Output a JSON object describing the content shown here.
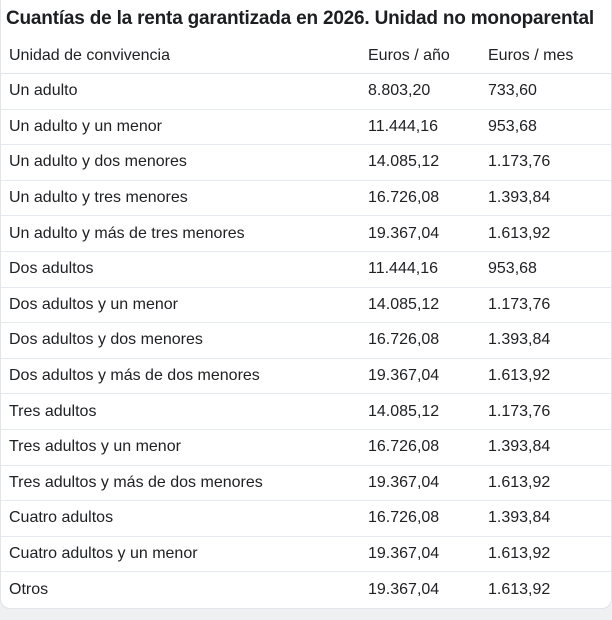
{
  "page": {
    "title": "Cuantías de la renta garantizada en 2026. Unidad no monoparental"
  },
  "chart_data": {
    "type": "table",
    "title": "Cuantías de la renta garantizada en 2026. Unidad no monoparental",
    "columns": [
      "Unidad de convivencia",
      "Euros / año",
      "Euros / mes"
    ],
    "rows": [
      [
        "Un adulto",
        "8.803,20",
        "733,60"
      ],
      [
        "Un adulto y un menor",
        "11.444,16",
        "953,68"
      ],
      [
        "Un adulto y dos menores",
        "14.085,12",
        "1.173,76"
      ],
      [
        "Un adulto y tres menores",
        "16.726,08",
        "1.393,84"
      ],
      [
        "Un adulto y más de tres menores",
        "19.367,04",
        "1.613,92"
      ],
      [
        "Dos adultos",
        "11.444,16",
        "953,68"
      ],
      [
        "Dos adultos y un menor",
        "14.085,12",
        "1.173,76"
      ],
      [
        "Dos adultos y dos menores",
        "16.726,08",
        "1.393,84"
      ],
      [
        "Dos adultos y más de dos  menores",
        "19.367,04",
        "1.613,92"
      ],
      [
        "Tres adultos",
        "14.085,12",
        "1.173,76"
      ],
      [
        "Tres adultos y un menor",
        "16.726,08",
        "1.393,84"
      ],
      [
        "Tres adultos y más de dos menores",
        "19.367,04",
        "1.613,92"
      ],
      [
        "Cuatro adultos",
        "16.726,08",
        "1.393,84"
      ],
      [
        "Cuatro adultos y un menor",
        "19.367,04",
        "1.613,92"
      ],
      [
        "Otros",
        "19.367,04",
        "1.613,92"
      ]
    ]
  },
  "colors": {
    "text": "#202124",
    "title_text": "#1c1e21",
    "divider": "#e4eaef",
    "card_background": "#ffffff",
    "page_background": "#eef0f2",
    "card_border": "#dfe5ea"
  }
}
